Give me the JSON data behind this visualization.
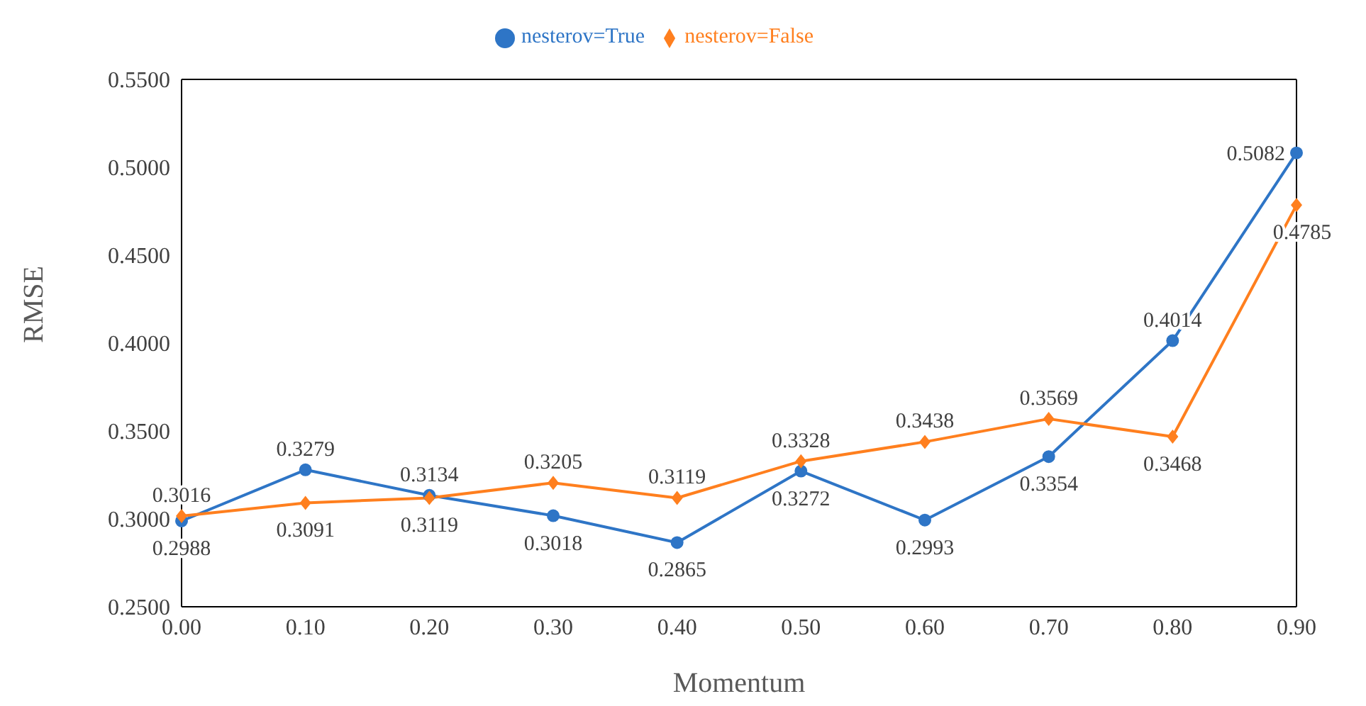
{
  "chart_data": {
    "type": "line",
    "xlabel": "Momentum",
    "ylabel": "RMSE",
    "categories": [
      "0.00",
      "0.10",
      "0.20",
      "0.30",
      "0.40",
      "0.50",
      "0.60",
      "0.70",
      "0.80",
      "0.90"
    ],
    "series": [
      {
        "name": "nesterov=True",
        "color": "#2e75c6",
        "marker": "circle",
        "values": [
          0.2988,
          0.3279,
          0.3134,
          0.3018,
          0.2865,
          0.3272,
          0.2993,
          0.3354,
          0.4014,
          0.5082
        ]
      },
      {
        "name": "nesterov=False",
        "color": "#ff7f1e",
        "marker": "diamond",
        "values": [
          0.3016,
          0.3091,
          0.3119,
          0.3205,
          0.3119,
          0.3328,
          0.3438,
          0.3569,
          0.3468,
          0.4785
        ]
      }
    ],
    "ylim": [
      0.25,
      0.55
    ],
    "yticks": [
      {
        "value": 0.25,
        "label": "0.2500"
      },
      {
        "value": 0.3,
        "label": "0.3000"
      },
      {
        "value": 0.35,
        "label": "0.3500"
      },
      {
        "value": 0.4,
        "label": "0.4000"
      },
      {
        "value": 0.45,
        "label": "0.4500"
      },
      {
        "value": 0.5,
        "label": "0.5000"
      },
      {
        "value": 0.55,
        "label": "0.5500"
      }
    ],
    "grid": false,
    "legend": "top",
    "data_labels": true,
    "line_style": "solid"
  }
}
